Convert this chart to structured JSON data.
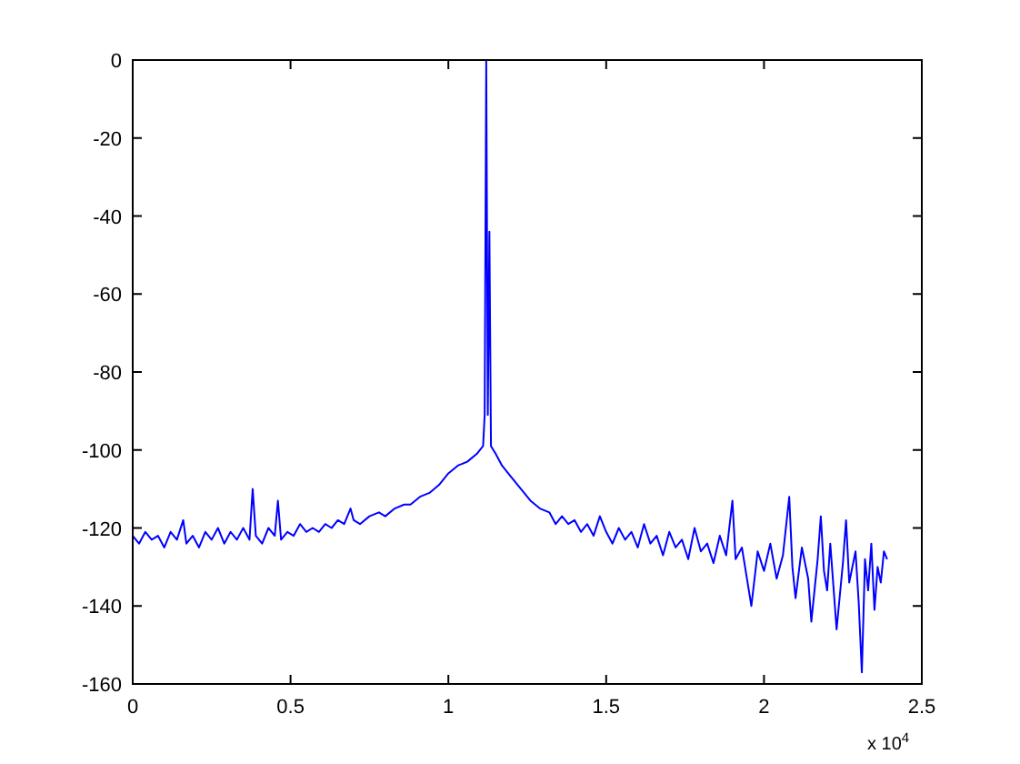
{
  "chart_data": {
    "type": "line",
    "xlim": [
      0,
      2.5
    ],
    "ylim": [
      -160,
      0
    ],
    "xticks": [
      0,
      0.5,
      1,
      1.5,
      2,
      2.5
    ],
    "yticks": [
      -160,
      -140,
      -120,
      -100,
      -80,
      -60,
      -40,
      -20,
      0
    ],
    "grid": false,
    "annotations": [
      "x 10$^{4}$"
    ],
    "series": [
      {
        "color": "#0000ff",
        "x": [
          0,
          0.02,
          0.04,
          0.06,
          0.08,
          0.1,
          0.12,
          0.14,
          0.16,
          0.17,
          0.19,
          0.21,
          0.23,
          0.25,
          0.27,
          0.29,
          0.31,
          0.33,
          0.35,
          0.37,
          0.38,
          0.39,
          0.41,
          0.43,
          0.45,
          0.46,
          0.47,
          0.49,
          0.51,
          0.53,
          0.55,
          0.57,
          0.59,
          0.61,
          0.63,
          0.65,
          0.67,
          0.69,
          0.7,
          0.72,
          0.75,
          0.78,
          0.8,
          0.83,
          0.86,
          0.88,
          0.91,
          0.94,
          0.97,
          1.0,
          1.03,
          1.06,
          1.09,
          1.11,
          1.115,
          1.12,
          1.125,
          1.13,
          1.135,
          1.15,
          1.17,
          1.2,
          1.23,
          1.26,
          1.29,
          1.32,
          1.34,
          1.36,
          1.38,
          1.4,
          1.42,
          1.44,
          1.46,
          1.48,
          1.5,
          1.52,
          1.54,
          1.56,
          1.58,
          1.6,
          1.62,
          1.64,
          1.66,
          1.68,
          1.7,
          1.72,
          1.74,
          1.76,
          1.78,
          1.8,
          1.82,
          1.84,
          1.86,
          1.88,
          1.9,
          1.91,
          1.93,
          1.95,
          1.96,
          1.98,
          2.0,
          2.02,
          2.04,
          2.06,
          2.08,
          2.09,
          2.1,
          2.12,
          2.14,
          2.15,
          2.17,
          2.18,
          2.19,
          2.2,
          2.21,
          2.23,
          2.25,
          2.26,
          2.27,
          2.29,
          2.3,
          2.31,
          2.32,
          2.33,
          2.34,
          2.35,
          2.36,
          2.37,
          2.38,
          2.39
        ],
        "values": [
          -122,
          -124,
          -121,
          -123,
          -122,
          -125,
          -121,
          -123,
          -118,
          -124,
          -122,
          -125,
          -121,
          -123,
          -120,
          -124,
          -121,
          -123,
          -120,
          -123,
          -110,
          -122,
          -124,
          -120,
          -122,
          -113,
          -123,
          -121,
          -122,
          -119,
          -121,
          -120,
          -121,
          -119,
          -120,
          -118,
          -119,
          -115,
          -118,
          -119,
          -117,
          -116,
          -117,
          -115,
          -114,
          -114,
          -112,
          -111,
          -109,
          -106,
          -104,
          -103,
          -101,
          -99,
          -91,
          0,
          -91,
          -44,
          -99,
          -101,
          -104,
          -107,
          -110,
          -113,
          -115,
          -116,
          -119,
          -117,
          -119,
          -118,
          -121,
          -119,
          -122,
          -117,
          -121,
          -124,
          -120,
          -123,
          -121,
          -125,
          -119,
          -124,
          -122,
          -127,
          -121,
          -125,
          -123,
          -128,
          -120,
          -126,
          -124,
          -129,
          -122,
          -127,
          -113,
          -128,
          -125,
          -135,
          -140,
          -126,
          -131,
          -124,
          -133,
          -127,
          -112,
          -130,
          -138,
          -125,
          -133,
          -144,
          -128,
          -117,
          -131,
          -136,
          -124,
          -146,
          -129,
          -118,
          -134,
          -126,
          -139,
          -157,
          -128,
          -136,
          -124,
          -141,
          -130,
          -134,
          -126,
          -128
        ]
      }
    ]
  }
}
